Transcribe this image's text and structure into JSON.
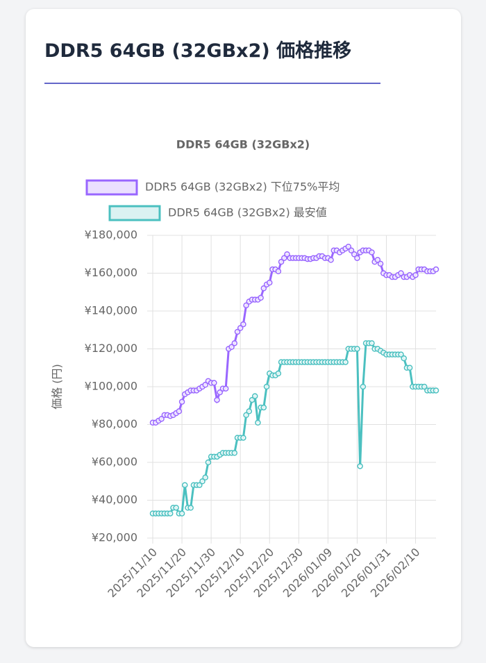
{
  "header": {
    "title": "DDR5 64GB (32GBx2) 価格推移"
  },
  "chart_data": {
    "type": "line",
    "title": "DDR5 64GB (32GBx2)",
    "ylabel": "価格 (円)",
    "categories": [
      "2025/11/10",
      null,
      null,
      null,
      null,
      null,
      null,
      null,
      null,
      null,
      "2025/11/20",
      null,
      null,
      null,
      null,
      null,
      null,
      null,
      null,
      null,
      "2025/11/30",
      null,
      null,
      null,
      null,
      null,
      null,
      null,
      null,
      null,
      "2025/12/10",
      null,
      null,
      null,
      null,
      null,
      null,
      null,
      null,
      null,
      "2025/12/20",
      null,
      null,
      null,
      null,
      null,
      null,
      null,
      null,
      null,
      "2025/12/30",
      null,
      null,
      null,
      null,
      null,
      null,
      null,
      null,
      null,
      "2026/01/09",
      null,
      null,
      null,
      null,
      null,
      null,
      null,
      null,
      null,
      "2026/01/20",
      null,
      null,
      null,
      null,
      null,
      null,
      null,
      null,
      null,
      "2026/01/31",
      null,
      null,
      null,
      null,
      null,
      null,
      null,
      null,
      null,
      "2026/02/10",
      null,
      null,
      null,
      null,
      null,
      null,
      null
    ],
    "series": [
      {
        "name": "DDR5 64GB (32GBx2) 下位75%平均",
        "color": "#9966ff",
        "values": [
          81000,
          81000,
          82000,
          83000,
          85000,
          85000,
          84500,
          85000,
          86000,
          87000,
          92000,
          96000,
          97000,
          98000,
          98000,
          98000,
          99000,
          100000,
          101000,
          103000,
          102000,
          102000,
          93000,
          97000,
          99000,
          99000,
          120000,
          121000,
          123000,
          129000,
          131000,
          133000,
          143000,
          145000,
          146000,
          146000,
          146000,
          147000,
          152000,
          154000,
          155000,
          162000,
          162000,
          161000,
          166000,
          168000,
          170000,
          168000,
          168000,
          168000,
          168000,
          168000,
          168000,
          167500,
          167500,
          168000,
          168000,
          169000,
          169000,
          168000,
          168000,
          167000,
          172000,
          172000,
          171000,
          172000,
          173000,
          174000,
          172000,
          170000,
          168000,
          171000,
          172000,
          172000,
          172000,
          171000,
          166000,
          167000,
          165000,
          160000,
          159000,
          159000,
          158000,
          158000,
          159000,
          160000,
          158000,
          158000,
          159000,
          158000,
          159000,
          162000,
          162000,
          162000,
          161000,
          161000,
          161000,
          162000
        ]
      },
      {
        "name": "DDR5 64GB (32GBx2) 最安値",
        "color": "#4bc0c0",
        "values": [
          33000,
          33000,
          33000,
          33000,
          33000,
          33000,
          33000,
          36000,
          36000,
          33000,
          33000,
          48000,
          36000,
          36000,
          48000,
          48000,
          48000,
          50000,
          52000,
          60000,
          63000,
          63000,
          63000,
          64000,
          65000,
          65000,
          65000,
          65000,
          65000,
          73000,
          73000,
          73000,
          85000,
          87000,
          93000,
          95000,
          81000,
          89000,
          89000,
          100000,
          107000,
          106000,
          106000,
          107000,
          113000,
          113000,
          113000,
          113000,
          113000,
          113000,
          113000,
          113000,
          113000,
          113000,
          113000,
          113000,
          113000,
          113000,
          113000,
          113000,
          113000,
          113000,
          113000,
          113000,
          113000,
          113000,
          113000,
          120000,
          120000,
          120000,
          120000,
          58000,
          100000,
          123000,
          123000,
          123000,
          120000,
          120000,
          119000,
          118000,
          117000,
          117000,
          117000,
          117000,
          117000,
          117000,
          115000,
          110000,
          110000,
          100000,
          100000,
          100000,
          100000,
          100000,
          98000,
          98000,
          98000,
          98000
        ]
      }
    ],
    "ylim": [
      20000,
      180000
    ],
    "yticks": [
      {
        "value": 20000,
        "label": "¥20,000"
      },
      {
        "value": 40000,
        "label": "¥40,000"
      },
      {
        "value": 60000,
        "label": "¥60,000"
      },
      {
        "value": 80000,
        "label": "¥80,000"
      },
      {
        "value": 100000,
        "label": "¥100,000"
      },
      {
        "value": 120000,
        "label": "¥120,000"
      },
      {
        "value": 140000,
        "label": "¥140,000"
      },
      {
        "value": 160000,
        "label": "¥160,000"
      },
      {
        "value": 180000,
        "label": "¥180,000"
      }
    ],
    "grid": true,
    "legend": "top"
  }
}
